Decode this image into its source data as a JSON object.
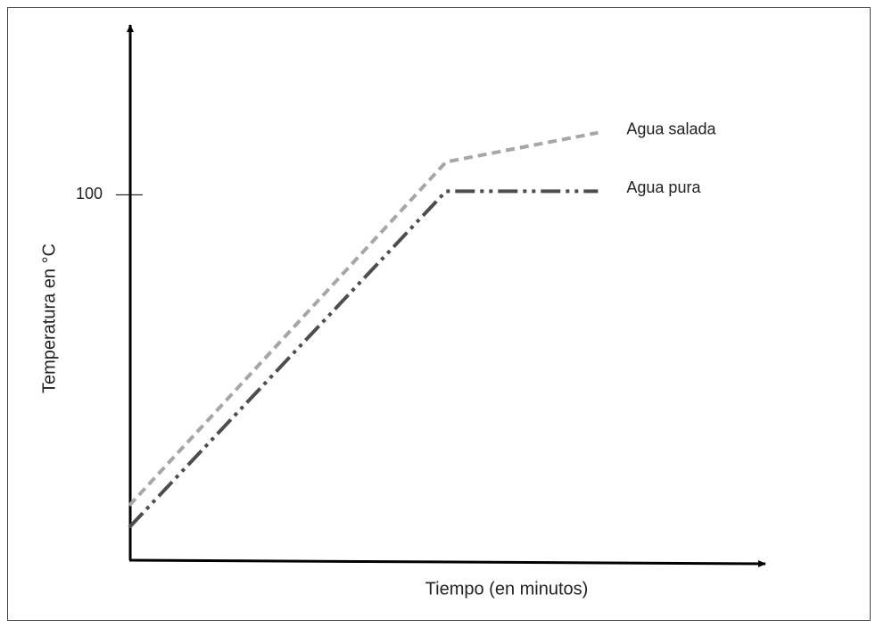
{
  "chart_data": {
    "type": "line",
    "x_label": "Tiempo (en minutos)",
    "y_label": "Temperatura en °C",
    "x": [
      0,
      50,
      74
    ],
    "xlim": [
      0,
      100
    ],
    "ylim": [
      0,
      146
    ],
    "yticks": [
      100
    ],
    "grid": false,
    "series": [
      {
        "name": "Agua salada",
        "color": "#a6a6a6",
        "dash": "dashed",
        "values": [
          15,
          109,
          117
        ]
      },
      {
        "name": "Agua pura",
        "color": "#4d4d4d",
        "dash": "dashdotdot",
        "values": [
          9,
          101,
          101
        ]
      }
    ]
  }
}
